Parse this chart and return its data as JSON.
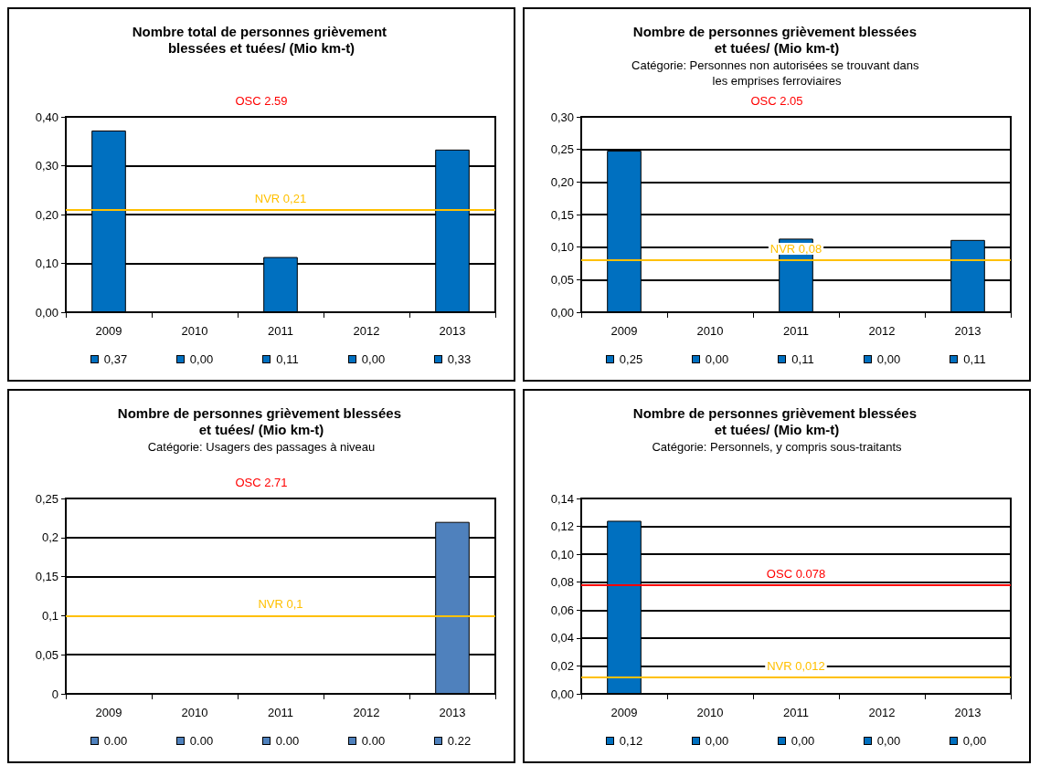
{
  "chart_data": [
    {
      "type": "bar",
      "title": "Nombre total de personnes grièvement blessées et tuées/ (Mio km-t)",
      "categories": [
        "2009",
        "2010",
        "2011",
        "2012",
        "2013"
      ],
      "values": [
        0.372,
        0,
        0.113,
        0,
        0.333
      ],
      "color": "#0070c0",
      "value_labels": [
        "0,37",
        "0,00",
        "0,11",
        "0,00",
        "0,33"
      ],
      "ylim": [
        0,
        0.4
      ],
      "yticks": [
        {
          "value": 0,
          "label": "0,00"
        },
        {
          "value": 0.1,
          "label": "0,10"
        },
        {
          "value": 0.2,
          "label": "0,20"
        },
        {
          "value": 0.3,
          "label": "0,30"
        },
        {
          "value": 0.4,
          "label": "0,40"
        }
      ],
      "grid": "y",
      "ref_lines": [
        {
          "axis": "y",
          "value": 0.21,
          "label": "NVR 0,21",
          "color": "#ffc000"
        }
      ],
      "annotations": [
        "OSC 2.59"
      ]
    },
    {
      "type": "bar",
      "title": "Nombre de personnes grièvement blessées et tuées/ (Mio km-t)",
      "subtitle": "Catégorie: Personnes non autorisées se trouvant dans les emprises ferroviaires",
      "categories": [
        "2009",
        "2010",
        "2011",
        "2012",
        "2013"
      ],
      "values": [
        0.248,
        0,
        0.113,
        0,
        0.111
      ],
      "color": "#0070c0",
      "value_labels": [
        "0,25",
        "0,00",
        "0,11",
        "0,00",
        "0,11"
      ],
      "ylim": [
        0,
        0.3
      ],
      "yticks": [
        {
          "value": 0,
          "label": "0,00"
        },
        {
          "value": 0.05,
          "label": "0,05"
        },
        {
          "value": 0.1,
          "label": "0,10"
        },
        {
          "value": 0.15,
          "label": "0,15"
        },
        {
          "value": 0.2,
          "label": "0,20"
        },
        {
          "value": 0.25,
          "label": "0,25"
        },
        {
          "value": 0.3,
          "label": "0,30"
        }
      ],
      "grid": "y",
      "ref_lines": [
        {
          "axis": "y",
          "value": 0.08,
          "label": "NVR 0,08",
          "color": "#ffc000"
        }
      ],
      "annotations": [
        "OSC 2.05"
      ]
    },
    {
      "type": "bar",
      "title": "Nombre de personnes grièvement blessées et tuées/ (Mio km-t)",
      "subtitle": "Catégorie: Usagers des passages à niveau",
      "categories": [
        "2009",
        "2010",
        "2011",
        "2012",
        "2013"
      ],
      "values": [
        0,
        0,
        0,
        0,
        0.22
      ],
      "color": "#4f81bd",
      "value_labels": [
        "0.00",
        "0.00",
        "0.00",
        "0.00",
        "0.22"
      ],
      "ylim": [
        0,
        0.25
      ],
      "yticks": [
        0,
        {
          "value": 0.05,
          "label": "0,05"
        },
        {
          "value": 0.1,
          "label": "0,1"
        },
        {
          "value": 0.15,
          "label": "0,15"
        },
        {
          "value": 0.2,
          "label": "0,2"
        },
        {
          "value": 0.25,
          "label": "0,25"
        }
      ],
      "grid": "y",
      "ref_lines": [
        {
          "axis": "y",
          "value": 0.1,
          "label": "NVR 0,1",
          "color": "#ffc000"
        }
      ],
      "annotations": [
        "OSC 2.71"
      ]
    },
    {
      "type": "bar",
      "title": "Nombre de personnes grièvement blessées et tuées/ (Mio km-t)",
      "subtitle": "Catégorie: Personnels, y compris sous-traitants",
      "categories": [
        "2009",
        "2010",
        "2011",
        "2012",
        "2013"
      ],
      "values": [
        0.124,
        0,
        0,
        0,
        0
      ],
      "color": "#0070c0",
      "value_labels": [
        "0,12",
        "0,00",
        "0,00",
        "0,00",
        "0,00"
      ],
      "ylim": [
        0,
        0.14
      ],
      "yticks": [
        {
          "value": 0,
          "label": "0,00"
        },
        {
          "value": 0.02,
          "label": "0,02"
        },
        {
          "value": 0.04,
          "label": "0,04"
        },
        {
          "value": 0.06,
          "label": "0,06"
        },
        {
          "value": 0.08,
          "label": "0,08"
        },
        {
          "value": 0.1,
          "label": "0,10"
        },
        {
          "value": 0.12,
          "label": "0,12"
        },
        {
          "value": 0.14,
          "label": "0,14"
        }
      ],
      "grid": "y",
      "ref_lines": [
        {
          "axis": "y",
          "value": 0.078,
          "label": "OSC 0.078",
          "color": "#ff0000"
        },
        {
          "axis": "y",
          "value": 0.012,
          "label": "NVR 0,012",
          "color": "#ffc000"
        }
      ]
    }
  ]
}
